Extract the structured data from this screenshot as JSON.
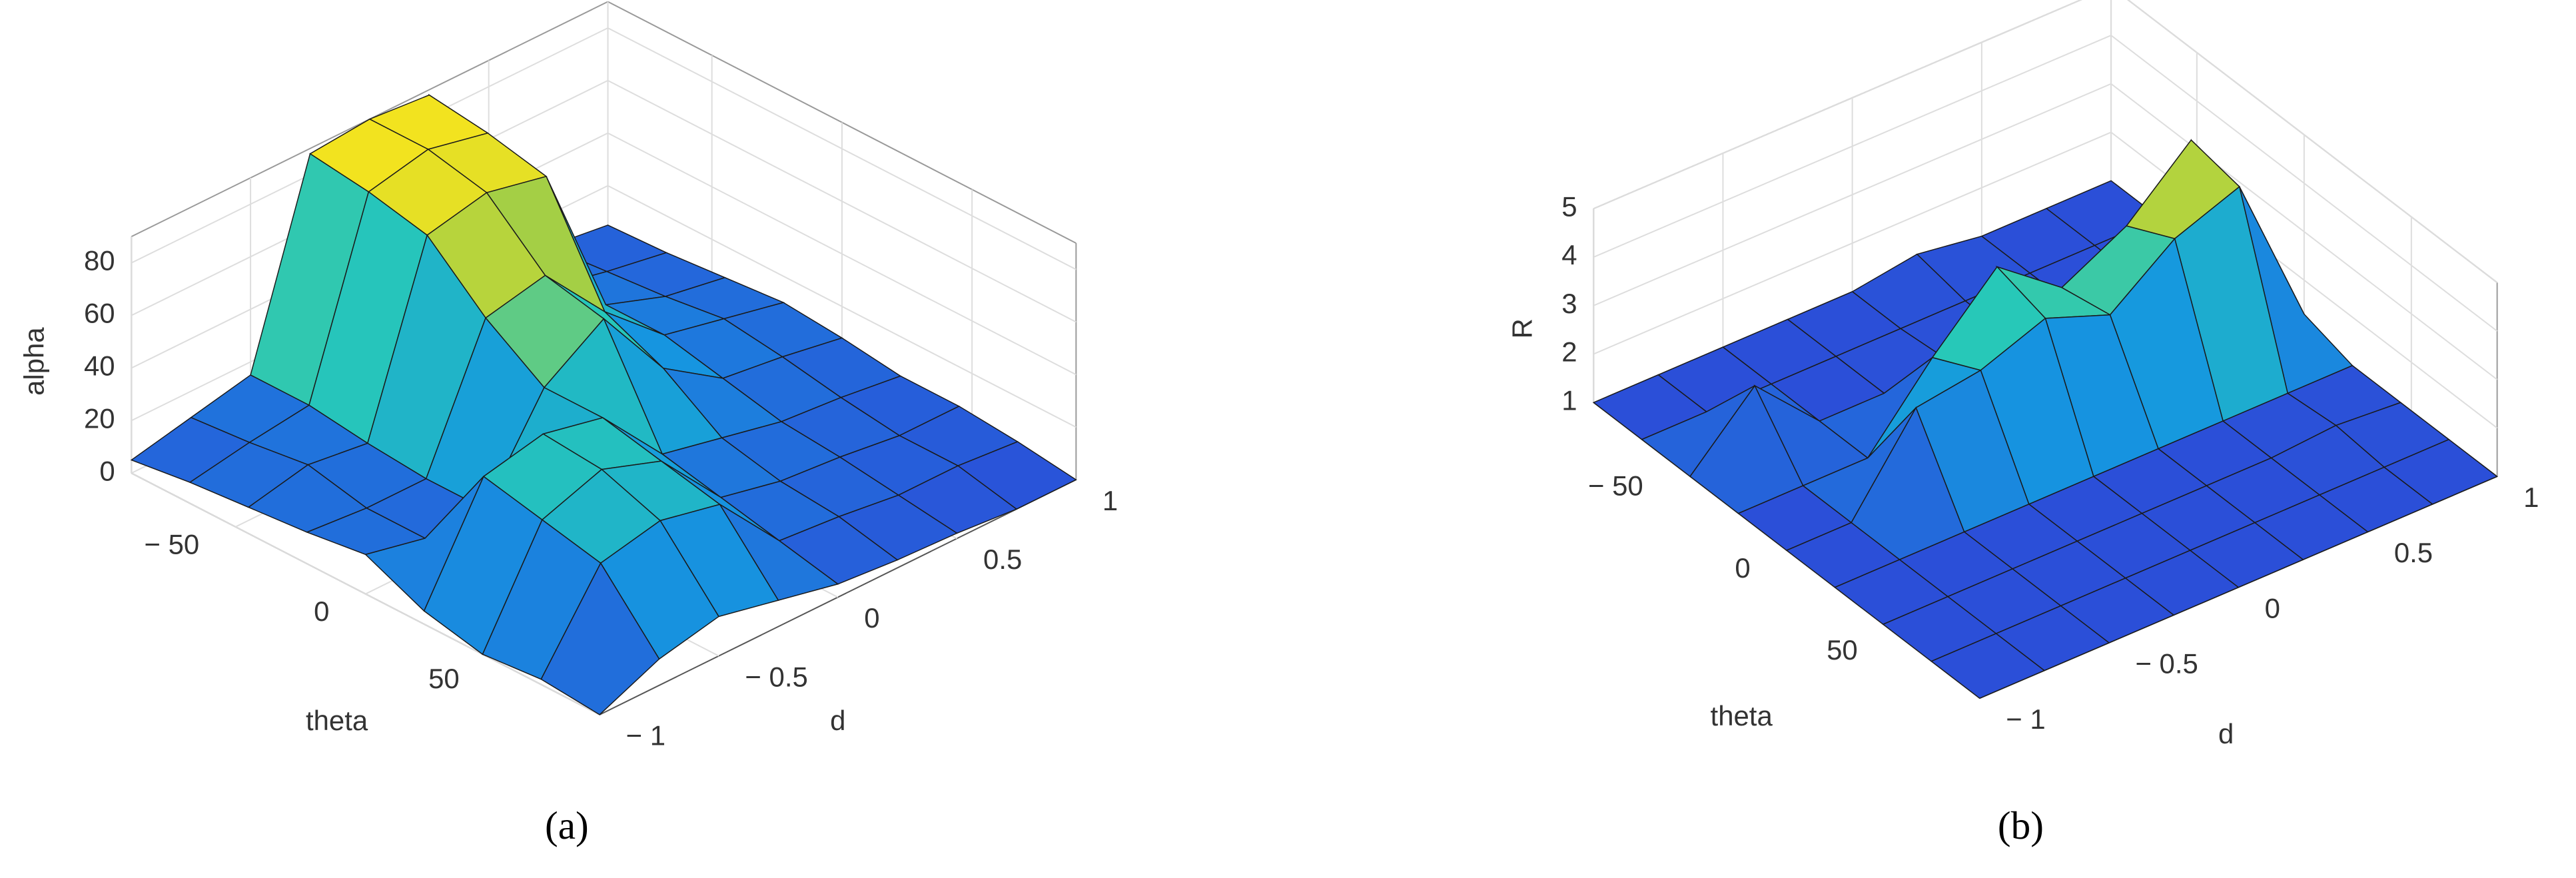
{
  "chart_data": [
    {
      "type": "surface",
      "caption": "(a)",
      "xlabel": "theta",
      "ylabel": "d",
      "zlabel": "alpha",
      "x": [
        -90,
        -67.5,
        -45,
        -22.5,
        0,
        22.5,
        45,
        67.5,
        90
      ],
      "y": [
        -1,
        -0.75,
        -0.5,
        -0.25,
        0,
        0.25,
        0.5,
        0.75,
        1
      ],
      "z": [
        [
          5,
          10,
          15,
          88,
          90,
          88,
          12,
          8,
          5
        ],
        [
          8,
          12,
          15,
          85,
          90,
          85,
          15,
          10,
          6
        ],
        [
          10,
          15,
          12,
          80,
          85,
          80,
          20,
          12,
          8
        ],
        [
          12,
          10,
          10,
          60,
          65,
          40,
          20,
          15,
          10
        ],
        [
          15,
          10,
          10,
          45,
          60,
          30,
          15,
          12,
          8
        ],
        [
          5,
          45,
          50,
          45,
          20,
          15,
          10,
          8,
          5
        ],
        [
          0,
          40,
          48,
          40,
          15,
          10,
          8,
          5,
          5
        ],
        [
          2,
          35,
          40,
          35,
          10,
          8,
          5,
          5,
          3
        ],
        [
          0,
          10,
          15,
          10,
          5,
          3,
          2,
          0,
          0
        ]
      ],
      "xlim": [
        -90,
        90
      ],
      "ylim": [
        -1,
        1
      ],
      "zlim": [
        0,
        90
      ],
      "xticks": [
        {
          "value": -50,
          "label": "− 50"
        },
        0,
        50
      ],
      "yticks": [
        {
          "value": -1,
          "label": "− 1"
        },
        {
          "value": -0.5,
          "label": "− 0.5"
        },
        0,
        0.5,
        1
      ],
      "zticks": [
        0,
        20,
        40,
        60,
        80
      ],
      "colormap": "parula",
      "grid": true
    },
    {
      "type": "surface",
      "caption": "(b)",
      "xlabel": "theta",
      "ylabel": "d",
      "zlabel": "R",
      "x": [
        -90,
        -67.5,
        -45,
        -22.5,
        0,
        22.5,
        45,
        67.5,
        90
      ],
      "y": [
        -1,
        -0.75,
        -0.5,
        -0.25,
        0,
        0.25,
        0.5,
        0.75,
        1
      ],
      "z": [
        [
          1,
          1,
          1,
          1,
          1,
          1.2,
          1,
          1,
          1
        ],
        [
          1,
          1,
          1,
          1,
          1,
          1,
          1,
          1,
          1
        ],
        [
          1,
          2.3,
          1,
          1,
          1.1,
          1,
          1,
          1,
          1
        ],
        [
          1,
          1,
          1,
          2.5,
          3.8,
          2.8,
          3.5,
          4.7,
          1.2
        ],
        [
          1,
          1,
          2.8,
          3,
          3.5,
          3,
          4,
          4.5,
          1.3
        ],
        [
          1,
          1,
          1,
          1,
          1,
          1,
          1,
          1,
          1
        ],
        [
          1,
          1,
          1,
          1,
          1,
          1,
          1,
          1.1,
          1
        ],
        [
          1,
          1,
          1,
          1,
          1,
          1,
          1,
          1,
          1
        ],
        [
          1,
          1,
          1,
          1,
          1,
          1,
          1,
          1,
          1
        ]
      ],
      "xlim": [
        -90,
        90
      ],
      "ylim": [
        -1,
        1
      ],
      "zlim": [
        1,
        5
      ],
      "xticks": [
        {
          "value": -50,
          "label": "− 50"
        },
        0,
        50
      ],
      "yticks": [
        {
          "value": -1,
          "label": "− 1"
        },
        {
          "value": -0.5,
          "label": "− 0.5"
        },
        0,
        0.5,
        1
      ],
      "zticks": [
        1,
        2,
        3,
        4,
        5
      ],
      "colormap": "parula",
      "grid": true
    }
  ]
}
